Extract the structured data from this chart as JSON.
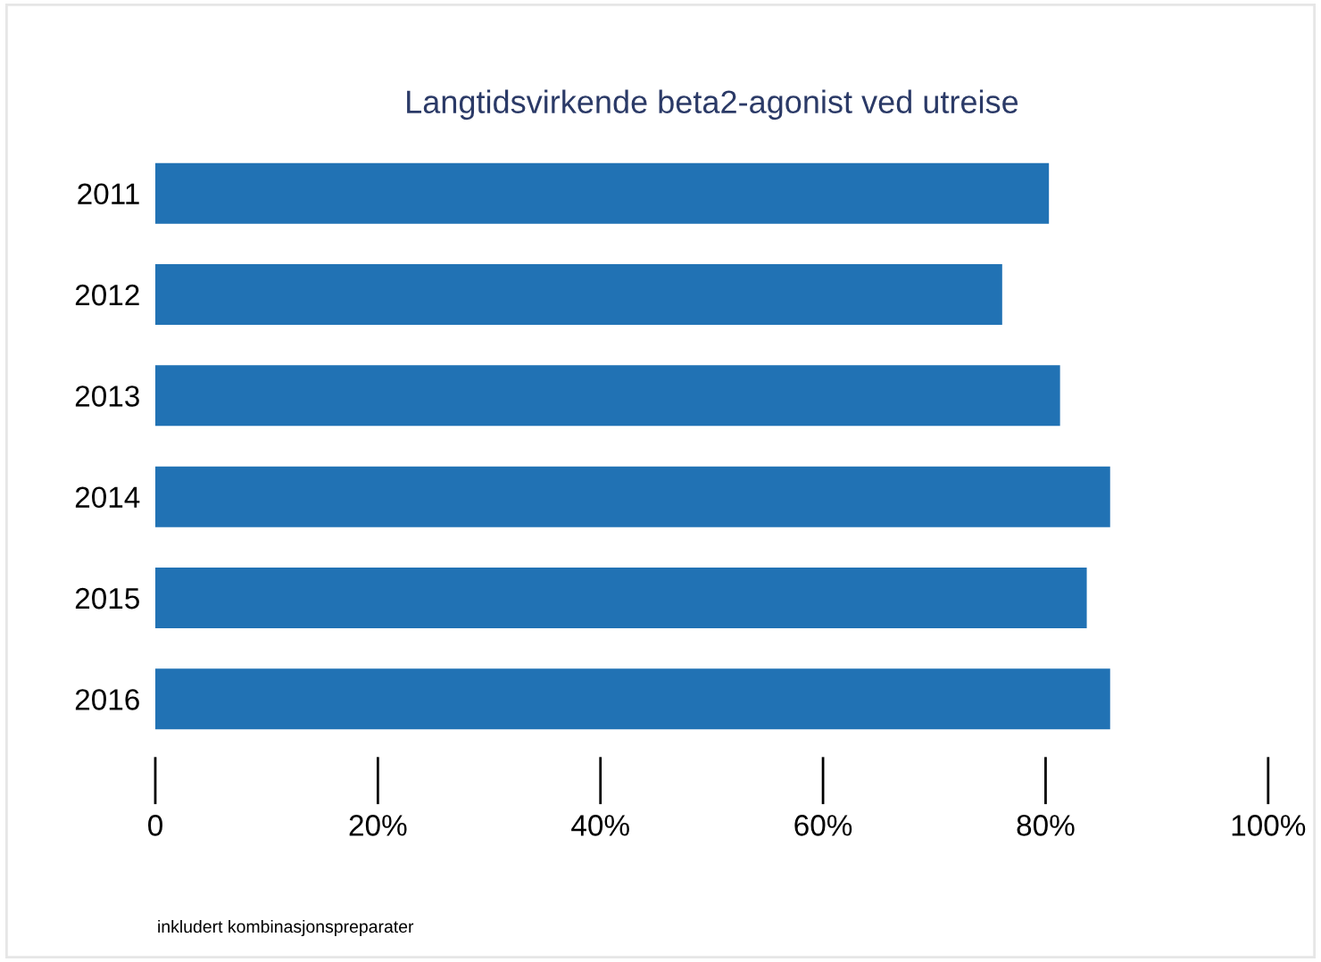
{
  "chart_data": {
    "type": "bar",
    "orientation": "horizontal",
    "title": "Langtidsvirkende beta2-agonist ved utreise",
    "categories": [
      "2011",
      "2012",
      "2013",
      "2014",
      "2015",
      "2016"
    ],
    "values": [
      80.3,
      76.1,
      81.3,
      85.8,
      83.7,
      85.8
    ],
    "color": "#2172b4",
    "xlim": [
      0,
      100
    ],
    "xticks": [
      {
        "value": 0,
        "label": "0"
      },
      {
        "value": 20,
        "label": "20%"
      },
      {
        "value": 40,
        "label": "40%"
      },
      {
        "value": 60,
        "label": "60%"
      },
      {
        "value": 80,
        "label": "80%"
      },
      {
        "value": 100,
        "label": "100%"
      }
    ],
    "annotations": [
      "inkludert kombinasjonspreparater"
    ],
    "grid": false
  }
}
